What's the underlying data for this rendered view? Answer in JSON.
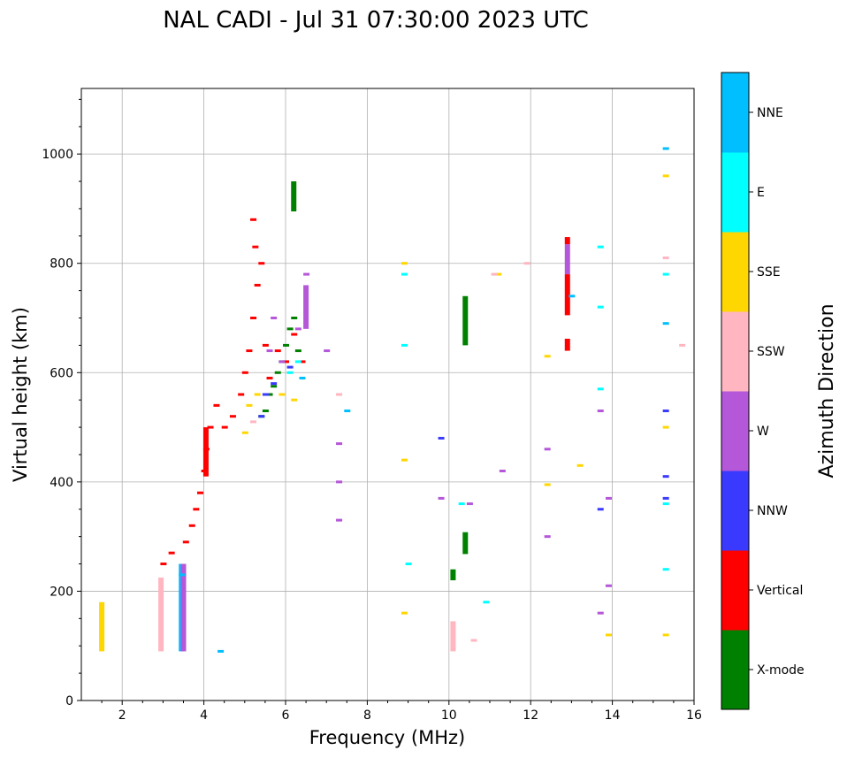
{
  "chart_data": {
    "type": "scatter",
    "title": "NAL CADI - Jul 31 07:30:00 2023 UTC",
    "xlabel": "Frequency (MHz)",
    "ylabel": "Virtual height (km)",
    "xlim": [
      1,
      16
    ],
    "ylim": [
      0,
      1120
    ],
    "xticks": [
      2,
      4,
      6,
      8,
      10,
      12,
      14,
      16
    ],
    "yticks": [
      0,
      200,
      400,
      600,
      800,
      1000
    ],
    "grid": true,
    "legend_position": "right colorbar",
    "colorbar": {
      "label": "Azimuth Direction",
      "categories": [
        {
          "name": "X-mode",
          "color": "#008000"
        },
        {
          "name": "Vertical",
          "color": "#ff0000"
        },
        {
          "name": "NNW",
          "color": "#3a3aff"
        },
        {
          "name": "W",
          "color": "#b557d9"
        },
        {
          "name": "SSW",
          "color": "#ffb6c1"
        },
        {
          "name": "SSE",
          "color": "#ffd700"
        },
        {
          "name": "E",
          "color": "#00ffff"
        },
        {
          "name": "NNE",
          "color": "#00bfff"
        }
      ]
    },
    "columns": [
      {
        "f": 1.5,
        "h0": 90,
        "h1": 180,
        "dir": "SSE"
      },
      {
        "f": 2.95,
        "h0": 90,
        "h1": 225,
        "dir": "SSW"
      },
      {
        "f": 3.45,
        "h0": 90,
        "h1": 250,
        "dir": "NNE"
      },
      {
        "f": 3.5,
        "h0": 90,
        "h1": 250,
        "dir": "W"
      },
      {
        "f": 6.2,
        "h0": 895,
        "h1": 950,
        "dir": "X-mode"
      },
      {
        "f": 6.5,
        "h0": 680,
        "h1": 760,
        "dir": "W"
      },
      {
        "f": 10.4,
        "h0": 650,
        "h1": 740,
        "dir": "X-mode"
      },
      {
        "f": 10.4,
        "h0": 268,
        "h1": 308,
        "dir": "X-mode"
      },
      {
        "f": 10.1,
        "h0": 220,
        "h1": 240,
        "dir": "X-mode"
      },
      {
        "f": 10.1,
        "h0": 90,
        "h1": 145,
        "dir": "SSW"
      },
      {
        "f": 12.9,
        "h0": 640,
        "h1": 662,
        "dir": "Vertical"
      },
      {
        "f": 12.9,
        "h0": 705,
        "h1": 780,
        "dir": "Vertical"
      },
      {
        "f": 12.9,
        "h0": 780,
        "h1": 835,
        "dir": "W"
      },
      {
        "f": 12.9,
        "h0": 835,
        "h1": 848,
        "dir": "Vertical"
      },
      {
        "f": 4.05,
        "h0": 410,
        "h1": 500,
        "dir": "Vertical"
      }
    ],
    "traces": [
      {
        "dir": "Vertical",
        "points": [
          [
            3.55,
            290
          ],
          [
            3.7,
            320
          ],
          [
            3.8,
            350
          ],
          [
            3.9,
            380
          ],
          [
            4.0,
            420
          ],
          [
            4.05,
            460
          ],
          [
            4.15,
            500
          ],
          [
            4.3,
            540
          ],
          [
            4.5,
            500
          ],
          [
            4.7,
            520
          ],
          [
            4.9,
            560
          ],
          [
            5.0,
            600
          ],
          [
            5.1,
            640
          ],
          [
            5.2,
            700
          ],
          [
            5.3,
            760
          ],
          [
            5.4,
            800
          ],
          [
            5.5,
            650
          ],
          [
            5.6,
            590
          ],
          [
            5.8,
            640
          ],
          [
            6.0,
            620
          ],
          [
            6.2,
            670
          ],
          [
            6.4,
            620
          ],
          [
            5.2,
            880
          ],
          [
            5.25,
            830
          ],
          [
            3.0,
            250
          ],
          [
            3.2,
            270
          ]
        ]
      },
      {
        "dir": "X-mode",
        "points": [
          [
            5.6,
            560
          ],
          [
            5.7,
            575
          ],
          [
            5.8,
            600
          ],
          [
            5.9,
            620
          ],
          [
            6.0,
            650
          ],
          [
            6.1,
            680
          ],
          [
            6.2,
            700
          ],
          [
            6.3,
            640
          ],
          [
            5.5,
            530
          ],
          [
            5.4,
            520
          ]
        ]
      },
      {
        "dir": "W",
        "points": [
          [
            5.6,
            640
          ],
          [
            5.7,
            700
          ],
          [
            5.9,
            620
          ],
          [
            6.3,
            680
          ],
          [
            6.5,
            780
          ],
          [
            7.0,
            640
          ],
          [
            7.3,
            470
          ],
          [
            7.3,
            400
          ],
          [
            7.3,
            330
          ],
          [
            9.8,
            370
          ],
          [
            10.5,
            360
          ],
          [
            11.3,
            420
          ],
          [
            12.4,
            460
          ],
          [
            12.4,
            300
          ],
          [
            13.7,
            530
          ],
          [
            13.9,
            370
          ],
          [
            13.9,
            210
          ],
          [
            13.7,
            160
          ]
        ]
      },
      {
        "dir": "NNW",
        "points": [
          [
            5.4,
            520
          ],
          [
            5.5,
            560
          ],
          [
            5.7,
            580
          ],
          [
            6.1,
            610
          ],
          [
            9.8,
            480
          ],
          [
            13.7,
            350
          ],
          [
            15.3,
            530
          ],
          [
            15.3,
            410
          ],
          [
            15.3,
            370
          ]
        ]
      },
      {
        "dir": "SSE",
        "points": [
          [
            5.0,
            490
          ],
          [
            5.1,
            540
          ],
          [
            5.3,
            560
          ],
          [
            5.9,
            560
          ],
          [
            6.2,
            550
          ],
          [
            8.9,
            440
          ],
          [
            8.9,
            160
          ],
          [
            8.9,
            800
          ],
          [
            11.2,
            780
          ],
          [
            12.4,
            395
          ],
          [
            12.4,
            630
          ],
          [
            13.2,
            430
          ],
          [
            13.9,
            120
          ],
          [
            15.3,
            500
          ],
          [
            15.3,
            120
          ],
          [
            15.3,
            960
          ]
        ]
      },
      {
        "dir": "E",
        "points": [
          [
            6.1,
            600
          ],
          [
            6.3,
            620
          ],
          [
            8.9,
            650
          ],
          [
            8.9,
            780
          ],
          [
            9.0,
            250
          ],
          [
            10.3,
            360
          ],
          [
            10.9,
            180
          ],
          [
            13.7,
            570
          ],
          [
            13.7,
            720
          ],
          [
            13.7,
            830
          ],
          [
            15.3,
            360
          ],
          [
            15.3,
            240
          ],
          [
            15.3,
            780
          ]
        ]
      },
      {
        "dir": "SSW",
        "points": [
          [
            5.2,
            510
          ],
          [
            7.3,
            560
          ],
          [
            10.6,
            110
          ],
          [
            11.1,
            780
          ],
          [
            11.9,
            800
          ],
          [
            15.3,
            810
          ],
          [
            15.7,
            650
          ]
        ]
      },
      {
        "dir": "NNE",
        "points": [
          [
            3.45,
            230
          ],
          [
            4.4,
            90
          ],
          [
            6.4,
            590
          ],
          [
            7.5,
            530
          ],
          [
            13.0,
            740
          ],
          [
            15.3,
            690
          ],
          [
            15.3,
            1010
          ]
        ]
      }
    ]
  }
}
